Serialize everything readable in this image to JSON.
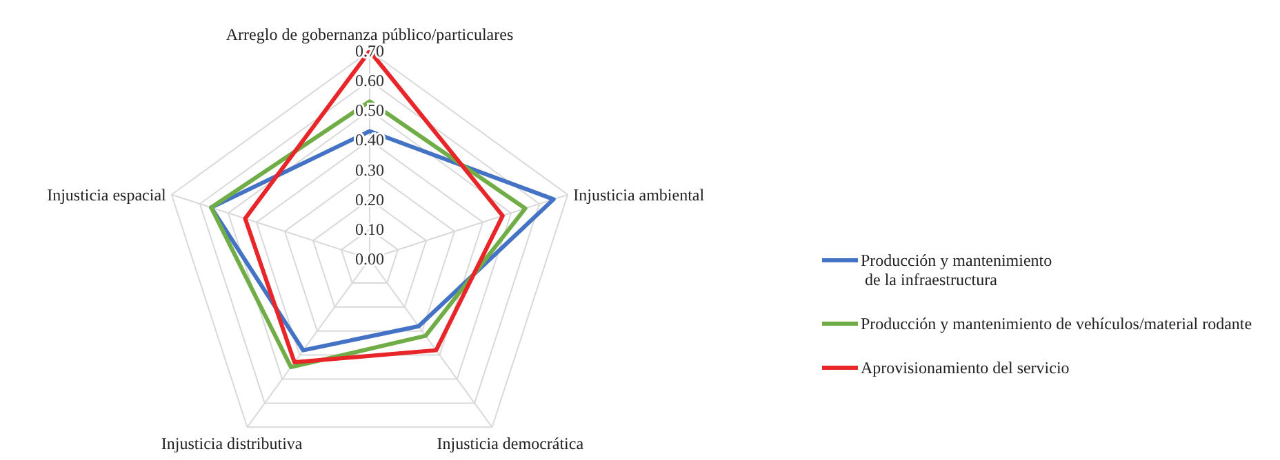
{
  "chart_data": {
    "type": "radar",
    "categories": [
      "Arreglo de gobernanza público/particulares",
      "Injusticia ambiental",
      "Injusticia democrática",
      "Injusticia distributiva",
      "Injusticia espacial"
    ],
    "series": [
      {
        "name": "Producción y mantenimiento\nde la infraestructura",
        "color": "#4472c4",
        "values": [
          0.43,
          0.65,
          0.28,
          0.38,
          0.56
        ]
      },
      {
        "name": "Producción y mantenimiento de vehículos/material rodante",
        "color": "#70ad47",
        "values": [
          0.53,
          0.55,
          0.32,
          0.45,
          0.56
        ]
      },
      {
        "name": "Aprovisionamiento del servicio",
        "color": "#e8262a",
        "values": [
          0.7,
          0.47,
          0.38,
          0.43,
          0.44
        ]
      }
    ],
    "ylim": [
      0,
      0.7
    ],
    "yticks": [
      {
        "value": 0,
        "label": "0.00"
      },
      {
        "value": 0.1,
        "label": "0.10"
      },
      {
        "value": 0.2,
        "label": "0.20"
      },
      {
        "value": 0.3,
        "label": "0.30"
      },
      {
        "value": 0.4,
        "label": "0.40"
      },
      {
        "value": 0.5,
        "label": "0.50"
      },
      {
        "value": 0.6,
        "label": "0.60"
      },
      {
        "value": 0.7,
        "label": "0.70"
      }
    ],
    "grid": true,
    "legend": "right",
    "marker": "none",
    "line_style": "solid"
  }
}
